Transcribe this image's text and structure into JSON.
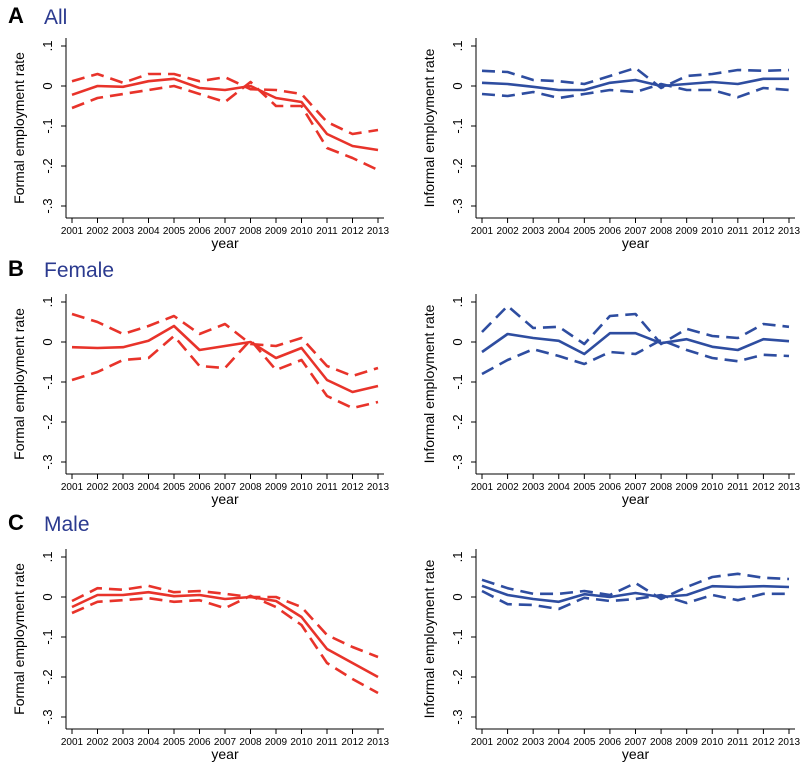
{
  "panels": [
    {
      "letter": "A",
      "title": "All"
    },
    {
      "letter": "B",
      "title": "Female"
    },
    {
      "letter": "C",
      "title": "Male"
    }
  ],
  "colors": {
    "formal": "#e8332a",
    "informal": "#2e4da0",
    "title": "#2b3a8f"
  },
  "chart_data": [
    {
      "type": "line",
      "panel": "A",
      "col": "left",
      "ylabel": "Formal employment rate",
      "xlabel": "year",
      "ylim": [
        -0.33,
        0.12
      ],
      "x": [
        2001,
        2002,
        2003,
        2004,
        2005,
        2006,
        2007,
        2008,
        2009,
        2010,
        2011,
        2012,
        2013
      ],
      "yticks": [
        0.1,
        0,
        -0.1,
        -0.2,
        -0.3
      ],
      "ytick_labels": [
        ".1",
        "0",
        "-.1",
        "-.2",
        "-.3"
      ],
      "series": [
        {
          "style": "solid",
          "values": [
            -0.022,
            0,
            -0.002,
            0.012,
            0.018,
            -0.005,
            -0.01,
            0,
            -0.03,
            -0.04,
            -0.12,
            -0.15,
            -0.16
          ]
        },
        {
          "style": "dashed",
          "values": [
            0.012,
            0.03,
            0.008,
            0.03,
            0.03,
            0.012,
            0.022,
            -0.008,
            -0.01,
            -0.02,
            -0.09,
            -0.12,
            -0.11
          ]
        },
        {
          "style": "dashed",
          "values": [
            -0.055,
            -0.03,
            -0.02,
            -0.01,
            0,
            -0.02,
            -0.04,
            0.01,
            -0.05,
            -0.05,
            -0.155,
            -0.18,
            -0.21
          ]
        }
      ]
    },
    {
      "type": "line",
      "panel": "A",
      "col": "right",
      "ylabel": "Informal employment rate",
      "xlabel": "year",
      "ylim": [
        -0.33,
        0.12
      ],
      "x": [
        2001,
        2002,
        2003,
        2004,
        2005,
        2006,
        2007,
        2008,
        2009,
        2010,
        2011,
        2012,
        2013
      ],
      "yticks": [
        0.1,
        0,
        -0.1,
        -0.2,
        -0.3
      ],
      "ytick_labels": [
        ".1",
        "0",
        "-.1",
        "-.2",
        "-.3"
      ],
      "series": [
        {
          "style": "solid",
          "values": [
            0.008,
            0.005,
            -0.002,
            -0.01,
            -0.01,
            0.008,
            0.015,
            0,
            0.005,
            0.01,
            0.005,
            0.018,
            0.018
          ]
        },
        {
          "style": "dashed",
          "values": [
            0.038,
            0.035,
            0.015,
            0.012,
            0.005,
            0.025,
            0.045,
            -0.005,
            0.025,
            0.03,
            0.04,
            0.038,
            0.04
          ]
        },
        {
          "style": "dashed",
          "values": [
            -0.02,
            -0.025,
            -0.015,
            -0.03,
            -0.02,
            -0.01,
            -0.015,
            0.005,
            -0.01,
            -0.01,
            -0.028,
            -0.005,
            -0.01
          ]
        }
      ]
    },
    {
      "type": "line",
      "panel": "B",
      "col": "left",
      "ylabel": "Formal employment rate",
      "xlabel": "year",
      "ylim": [
        -0.33,
        0.12
      ],
      "x": [
        2001,
        2002,
        2003,
        2004,
        2005,
        2006,
        2007,
        2008,
        2009,
        2010,
        2011,
        2012,
        2013
      ],
      "yticks": [
        0.1,
        0,
        -0.1,
        -0.2,
        -0.3
      ],
      "ytick_labels": [
        ".1",
        "0",
        "-.1",
        "-.2",
        "-.3"
      ],
      "series": [
        {
          "style": "solid",
          "values": [
            -0.013,
            -0.015,
            -0.013,
            0.003,
            0.04,
            -0.02,
            -0.01,
            0,
            -0.04,
            -0.015,
            -0.095,
            -0.125,
            -0.11
          ]
        },
        {
          "style": "dashed",
          "values": [
            0.07,
            0.05,
            0.02,
            0.04,
            0.065,
            0.02,
            0.045,
            -0.005,
            -0.01,
            0.01,
            -0.06,
            -0.085,
            -0.065
          ]
        },
        {
          "style": "dashed",
          "values": [
            -0.095,
            -0.075,
            -0.045,
            -0.04,
            0.015,
            -0.06,
            -0.065,
            0.005,
            -0.07,
            -0.045,
            -0.135,
            -0.165,
            -0.15
          ]
        }
      ]
    },
    {
      "type": "line",
      "panel": "B",
      "col": "right",
      "ylabel": "Informal employment rate",
      "xlabel": "year",
      "ylim": [
        -0.33,
        0.12
      ],
      "x": [
        2001,
        2002,
        2003,
        2004,
        2005,
        2006,
        2007,
        2008,
        2009,
        2010,
        2011,
        2012,
        2013
      ],
      "yticks": [
        0.1,
        0,
        -0.1,
        -0.2,
        -0.3
      ],
      "ytick_labels": [
        ".1",
        "0",
        "-.1",
        "-.2",
        "-.3"
      ],
      "series": [
        {
          "style": "solid",
          "values": [
            -0.025,
            0.02,
            0.01,
            0.003,
            -0.03,
            0.022,
            0.022,
            -0.003,
            0.007,
            -0.012,
            -0.02,
            0.007,
            0.002
          ]
        },
        {
          "style": "dashed",
          "values": [
            0.025,
            0.09,
            0.035,
            0.038,
            -0.005,
            0.065,
            0.07,
            -0.005,
            0.033,
            0.015,
            0.01,
            0.045,
            0.038
          ]
        },
        {
          "style": "dashed",
          "values": [
            -0.08,
            -0.045,
            -0.018,
            -0.035,
            -0.055,
            -0.025,
            -0.03,
            0.005,
            -0.02,
            -0.04,
            -0.048,
            -0.032,
            -0.035
          ]
        }
      ]
    },
    {
      "type": "line",
      "panel": "C",
      "col": "left",
      "ylabel": "Formal employment rate",
      "xlabel": "year",
      "ylim": [
        -0.33,
        0.12
      ],
      "x": [
        2001,
        2002,
        2003,
        2004,
        2005,
        2006,
        2007,
        2008,
        2009,
        2010,
        2011,
        2012,
        2013
      ],
      "yticks": [
        0.1,
        0,
        -0.1,
        -0.2,
        -0.3
      ],
      "ytick_labels": [
        ".1",
        "0",
        "-.1",
        "-.2",
        "-.3"
      ],
      "series": [
        {
          "style": "solid",
          "values": [
            -0.025,
            0.005,
            0.005,
            0.012,
            0.002,
            0.005,
            -0.005,
            0,
            -0.01,
            -0.05,
            -0.13,
            -0.165,
            -0.2
          ]
        },
        {
          "style": "dashed",
          "values": [
            -0.01,
            0.022,
            0.018,
            0.028,
            0.012,
            0.015,
            0.008,
            0,
            0,
            -0.025,
            -0.095,
            -0.125,
            -0.15
          ]
        },
        {
          "style": "dashed",
          "values": [
            -0.04,
            -0.012,
            -0.008,
            -0.003,
            -0.012,
            -0.008,
            -0.028,
            0.003,
            -0.025,
            -0.07,
            -0.165,
            -0.205,
            -0.24
          ]
        }
      ]
    },
    {
      "type": "line",
      "panel": "C",
      "col": "right",
      "ylabel": "Informal employment rate",
      "xlabel": "year",
      "ylim": [
        -0.33,
        0.12
      ],
      "x": [
        2001,
        2002,
        2003,
        2004,
        2005,
        2006,
        2007,
        2008,
        2009,
        2010,
        2011,
        2012,
        2013
      ],
      "yticks": [
        0.1,
        0,
        -0.1,
        -0.2,
        -0.3
      ],
      "ytick_labels": [
        ".1",
        "0",
        "-.1",
        "-.2",
        "-.3"
      ],
      "series": [
        {
          "style": "solid",
          "values": [
            0.028,
            0.005,
            -0.005,
            -0.012,
            0.007,
            0,
            0.01,
            0,
            0.005,
            0.027,
            0.025,
            0.027,
            0.025
          ]
        },
        {
          "style": "dashed",
          "values": [
            0.043,
            0.022,
            0.008,
            0.008,
            0.015,
            0.005,
            0.035,
            -0.005,
            0.025,
            0.05,
            0.058,
            0.048,
            0.045
          ]
        },
        {
          "style": "dashed",
          "values": [
            0.015,
            -0.018,
            -0.02,
            -0.03,
            -0.002,
            -0.01,
            -0.005,
            0.005,
            -0.015,
            0.005,
            -0.008,
            0.008,
            0.008
          ]
        }
      ]
    }
  ]
}
